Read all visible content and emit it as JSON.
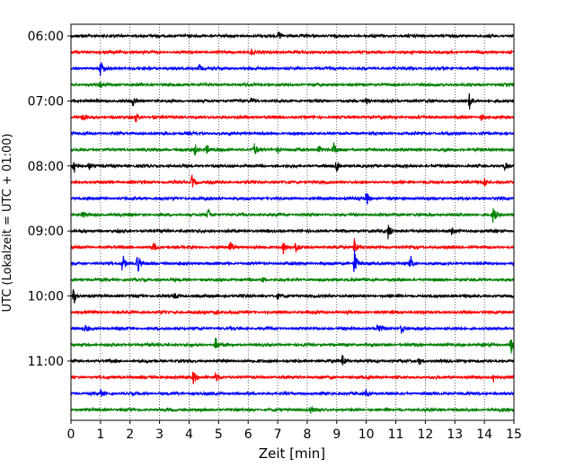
{
  "chart_data": {
    "type": "line",
    "xlabel": "Zeit  [min]",
    "ylabel": "UTC (Lokalzeit = UTC + 01:00)",
    "xlim": [
      0,
      15
    ],
    "x_ticks": [
      0,
      1,
      2,
      3,
      4,
      5,
      6,
      7,
      8,
      9,
      10,
      11,
      12,
      13,
      14,
      15
    ],
    "y_tick_labels": [
      "06:00",
      "07:00",
      "08:00",
      "09:00",
      "10:00",
      "11:00"
    ],
    "grid": "vertical dotted lines at each minute",
    "trace_colors": [
      "#000000",
      "#ff0000",
      "#0000ff",
      "#008000"
    ],
    "series": [
      {
        "start": "06:00",
        "color": "#000000",
        "events": [
          [
            7.05,
            0.6
          ]
        ]
      },
      {
        "start": "06:15",
        "color": "#ff0000",
        "events": [
          [
            6.1,
            0.4
          ]
        ]
      },
      {
        "start": "06:30",
        "color": "#0000ff",
        "events": [
          [
            1.0,
            1.0
          ],
          [
            4.35,
            0.5
          ]
        ]
      },
      {
        "start": "06:45",
        "color": "#008000",
        "events": [
          [
            1.0,
            0.5
          ]
        ]
      },
      {
        "start": "07:00",
        "color": "#000000",
        "events": [
          [
            2.1,
            0.6
          ],
          [
            6.1,
            0.4
          ],
          [
            10.0,
            0.4
          ],
          [
            13.5,
            1.0
          ]
        ]
      },
      {
        "start": "07:15",
        "color": "#ff0000",
        "events": [
          [
            0.4,
            0.5
          ],
          [
            2.2,
            0.6
          ],
          [
            13.9,
            0.4
          ]
        ]
      },
      {
        "start": "07:30",
        "color": "#0000ff",
        "events": []
      },
      {
        "start": "07:45",
        "color": "#008000",
        "events": [
          [
            4.2,
            0.7
          ],
          [
            4.6,
            0.6
          ],
          [
            6.2,
            0.9
          ],
          [
            7.0,
            0.5
          ],
          [
            8.4,
            0.6
          ],
          [
            8.9,
            0.8
          ]
        ]
      },
      {
        "start": "08:00",
        "color": "#000000",
        "events": [
          [
            0.1,
            1.0
          ],
          [
            0.6,
            0.6
          ],
          [
            9.0,
            0.9
          ],
          [
            14.7,
            0.5
          ]
        ]
      },
      {
        "start": "08:15",
        "color": "#ff0000",
        "events": [
          [
            4.1,
            1.0
          ],
          [
            14.0,
            0.7
          ]
        ]
      },
      {
        "start": "08:30",
        "color": "#0000ff",
        "events": [
          [
            10.0,
            1.0
          ]
        ]
      },
      {
        "start": "08:45",
        "color": "#008000",
        "events": [
          [
            0.4,
            0.5
          ],
          [
            4.65,
            0.8
          ],
          [
            14.3,
            1.0
          ]
        ]
      },
      {
        "start": "09:00",
        "color": "#000000",
        "events": [
          [
            10.75,
            1.1
          ],
          [
            12.9,
            0.4
          ]
        ]
      },
      {
        "start": "09:15",
        "color": "#ff0000",
        "events": [
          [
            2.8,
            0.5
          ],
          [
            5.4,
            0.8
          ],
          [
            7.2,
            0.9
          ],
          [
            7.6,
            0.7
          ],
          [
            9.6,
            1.2
          ]
        ]
      },
      {
        "start": "09:30",
        "color": "#0000ff",
        "events": [
          [
            1.75,
            1.3
          ],
          [
            2.25,
            1.3
          ],
          [
            9.6,
            1.8
          ],
          [
            11.5,
            0.9
          ]
        ]
      },
      {
        "start": "09:45",
        "color": "#008000",
        "events": [
          [
            6.5,
            0.4
          ]
        ]
      },
      {
        "start": "10:00",
        "color": "#000000",
        "events": [
          [
            0.1,
            1.1
          ],
          [
            3.5,
            0.3
          ],
          [
            7.0,
            0.3
          ]
        ]
      },
      {
        "start": "10:15",
        "color": "#ff0000",
        "events": [
          [
            4.9,
            0.5
          ]
        ]
      },
      {
        "start": "10:30",
        "color": "#0000ff",
        "events": [
          [
            0.5,
            0.4
          ],
          [
            10.4,
            1.0
          ],
          [
            11.2,
            0.7
          ]
        ]
      },
      {
        "start": "10:45",
        "color": "#008000",
        "events": [
          [
            4.9,
            0.9
          ],
          [
            14.9,
            1.2
          ]
        ]
      },
      {
        "start": "11:00",
        "color": "#000000",
        "events": [
          [
            9.2,
            0.9
          ],
          [
            11.8,
            0.6
          ]
        ]
      },
      {
        "start": "11:15",
        "color": "#ff0000",
        "events": [
          [
            4.15,
            1.0
          ],
          [
            4.9,
            0.6
          ],
          [
            14.3,
            0.7
          ]
        ]
      },
      {
        "start": "11:30",
        "color": "#0000ff",
        "events": [
          [
            1.0,
            0.4
          ],
          [
            10.0,
            0.4
          ]
        ]
      },
      {
        "start": "11:45",
        "color": "#008000",
        "events": [
          [
            8.1,
            0.5
          ]
        ]
      }
    ]
  }
}
